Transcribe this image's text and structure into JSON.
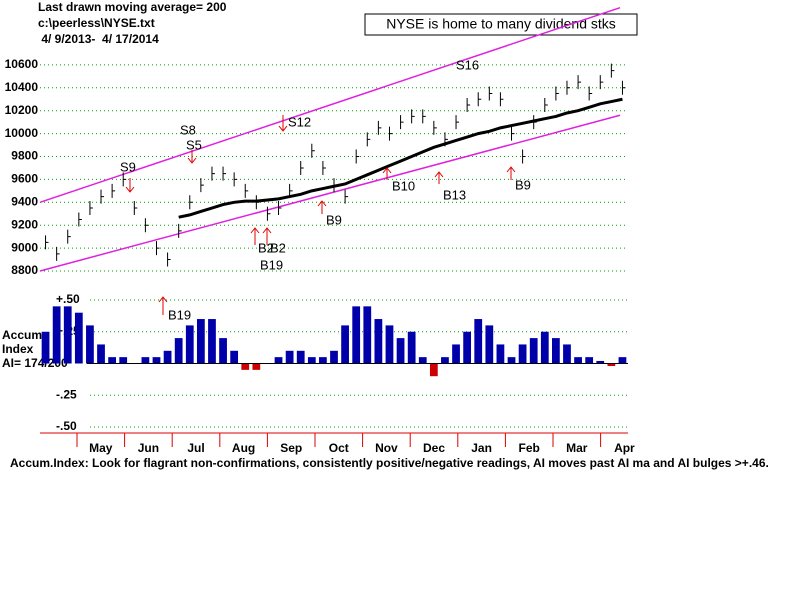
{
  "chart_data": {
    "type": "bar",
    "header": [
      "Last drawn moving average= 200",
      "c:\\peerless\\NYSE.txt",
      " 4/ 9/2013-  4/ 17/2014"
    ],
    "title": "NYSE is home to many dividend stks",
    "months": [
      "May",
      "Jun",
      "Jul",
      "Aug",
      "Sep",
      "Oct",
      "Nov",
      "Dec",
      "Jan",
      "Feb",
      "Mar",
      "Apr"
    ],
    "series": [
      {
        "name": "NYSE",
        "color": "#000000",
        "values": [
          9050,
          8950,
          9100,
          9250,
          9350,
          9450,
          9500,
          9600,
          9350,
          9200,
          9000,
          8900,
          9150,
          9400,
          9550,
          9650,
          9650,
          9600,
          9500,
          9400,
          9300,
          9350,
          9500,
          9700,
          9850,
          9700,
          9550,
          9450,
          9800,
          9950,
          10050,
          10000,
          10100,
          10150,
          10150,
          10050,
          9950,
          10100,
          10250,
          10300,
          10350,
          10300,
          10000,
          9800,
          10100,
          10250,
          10350,
          10400,
          10450,
          10350,
          10450,
          10550,
          10400
        ]
      },
      {
        "name": "200-day MA",
        "color": "#000000",
        "values": [
          null,
          null,
          null,
          null,
          null,
          null,
          null,
          null,
          null,
          null,
          null,
          null,
          9270,
          9290,
          9320,
          9350,
          9380,
          9400,
          9410,
          9410,
          9420,
          9430,
          9450,
          9470,
          9500,
          9520,
          9540,
          9560,
          9600,
          9640,
          9680,
          9720,
          9760,
          9800,
          9840,
          9880,
          9910,
          9940,
          9970,
          10000,
          10020,
          10050,
          10070,
          10090,
          10110,
          10130,
          10150,
          10180,
          10200,
          10230,
          10260,
          10280,
          10300
        ]
      }
    ],
    "channels": [
      {
        "color": "#e020e0",
        "values": [
          9400,
          11100
        ]
      },
      {
        "color": "#e020e0",
        "values": [
          8800,
          10160
        ]
      }
    ],
    "ylim": [
      8800,
      10800
    ],
    "yticks": [
      8800,
      9000,
      9200,
      9400,
      9600,
      9800,
      10000,
      10200,
      10400,
      10600
    ],
    "grid": true,
    "signals": [
      "S9",
      "S8",
      "S5",
      "S12",
      "S16",
      "B2",
      "B2",
      "B19",
      "B9",
      "B10",
      "B13",
      "B9",
      "B19"
    ],
    "accum": {
      "labels": [
        "Accum",
        "Index",
        "AI= 174/200"
      ],
      "positive_color": "#0000aa",
      "negative_color": "#cc0000",
      "values": [
        0.25,
        0.45,
        0.45,
        0.4,
        0.3,
        0.15,
        0.05,
        0.05,
        0,
        0.05,
        0.05,
        0.1,
        0.2,
        0.3,
        0.35,
        0.35,
        0.2,
        0.1,
        -0.05,
        -0.05,
        0,
        0.05,
        0.1,
        0.1,
        0.05,
        0.05,
        0.1,
        0.3,
        0.45,
        0.45,
        0.35,
        0.3,
        0.2,
        0.25,
        0.05,
        -0.1,
        0.05,
        0.15,
        0.25,
        0.35,
        0.3,
        0.15,
        0.05,
        0.15,
        0.2,
        0.25,
        0.2,
        0.15,
        0.05,
        0.05,
        0.02,
        -0.02,
        0.05
      ],
      "ylim": [
        -0.5,
        0.5
      ],
      "yticks": [
        {
          "value": 0.5,
          "label": "+.50"
        },
        {
          "value": 0.25,
          "label": "+.25"
        },
        {
          "value": -0.25,
          "label": "-.25"
        },
        {
          "value": -0.5,
          "label": "-.50"
        }
      ]
    },
    "footer": "Accum.Index: Look for flagrant non-confirmations, consistently positive/negative readings, AI moves past AI ma and AI bulges >+.46."
  }
}
